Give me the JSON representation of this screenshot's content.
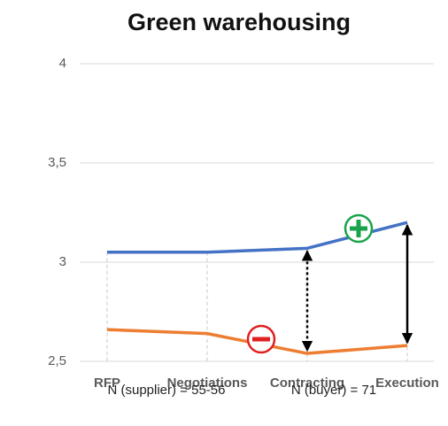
{
  "chart_data": {
    "type": "line",
    "title": "Green warehousing",
    "categories": [
      "RFP",
      "Negotiations",
      "Contracting",
      "Execution"
    ],
    "series": [
      {
        "color": "#4472c4",
        "values": [
          3.05,
          3.05,
          3.07,
          3.2
        ]
      },
      {
        "color": "#ed7d31",
        "values": [
          2.66,
          2.64,
          2.54,
          2.58
        ]
      }
    ],
    "ylim": [
      2.5,
      4
    ],
    "yticks": [
      {
        "value": 2.5,
        "label": "2,5"
      },
      3,
      {
        "value": 3.5,
        "label": "3,5"
      },
      4
    ],
    "grid": true,
    "notes": [
      "N (supplier) = 55-56",
      "N (buyer) = 71"
    ]
  }
}
